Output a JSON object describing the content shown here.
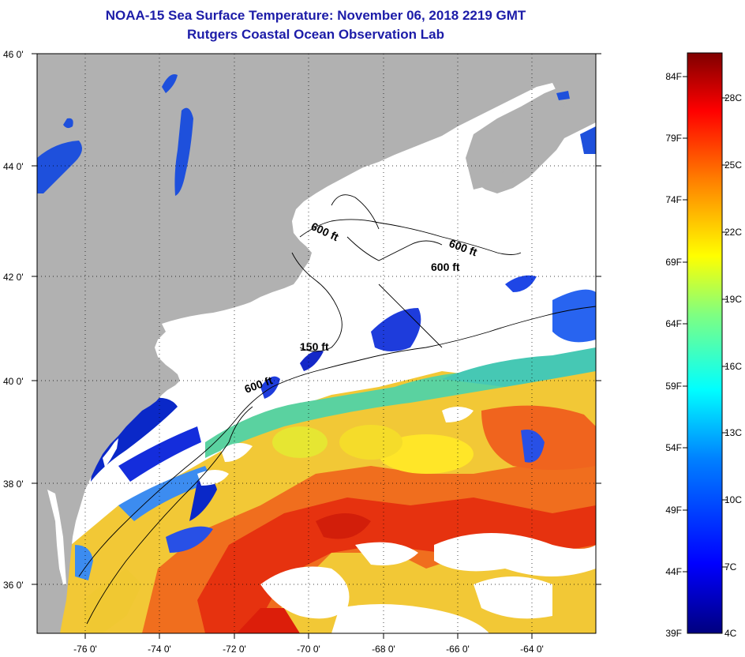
{
  "header": {
    "title": "NOAA-15 Sea Surface Temperature:  November 06, 2018 2219 GMT",
    "subtitle": "Rutgers Coastal Ocean Observation Lab"
  },
  "map": {
    "lat_labels": [
      "46 0'",
      "44 0'",
      "42 0'",
      "40 0'",
      "38 0'",
      "36 0'"
    ],
    "lon_labels": [
      "-76 0'",
      "-74 0'",
      "-72 0'",
      "-70 0'",
      "-68 0'",
      "-66 0'",
      "-64 0'"
    ],
    "contour_labels": [
      {
        "text": "600 ft"
      },
      {
        "text": "600 ft"
      },
      {
        "text": "600 ft"
      },
      {
        "text": "150 ft"
      },
      {
        "text": "600 ft"
      }
    ],
    "colors": {
      "land": "#b1b1b1",
      "cloud": "#ffffff",
      "cold": "#0a22c8",
      "warm": "#f05a14"
    }
  },
  "colorbar": {
    "fahrenheit_labels": [
      "84F",
      "79F",
      "74F",
      "69F",
      "64F",
      "59F",
      "54F",
      "49F",
      "44F",
      "39F"
    ],
    "celsius_labels": [
      "28C",
      "25C",
      "22C",
      "19C",
      "16C",
      "13C",
      "10C",
      "7C",
      "4C"
    ],
    "range_f": [
      39,
      86
    ],
    "gradient": [
      "#00007f",
      "#0000ff",
      "#0080ff",
      "#00ffff",
      "#80ff80",
      "#ffff00",
      "#ff8000",
      "#ff0000",
      "#7f0000"
    ]
  }
}
